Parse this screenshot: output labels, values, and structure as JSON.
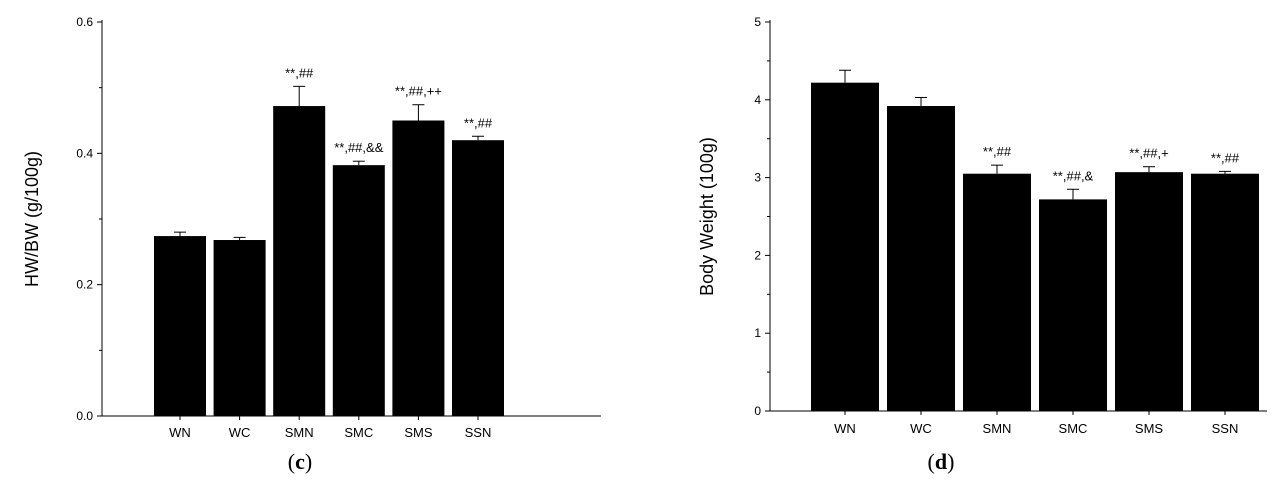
{
  "chart_data": [
    {
      "type": "bar",
      "panel_label": "(c)",
      "ylabel": "HW/BW (g/100g)",
      "xlabel": "",
      "ylim": [
        0,
        0.6
      ],
      "yticks": [
        "0.0",
        "0.2",
        "0.4",
        "0.6"
      ],
      "categories": [
        "WN",
        "WC",
        "SMN",
        "SMC",
        "SMS",
        "SSN"
      ],
      "values": [
        0.274,
        0.268,
        0.472,
        0.382,
        0.45,
        0.42
      ],
      "errors": [
        0.006,
        0.004,
        0.03,
        0.006,
        0.024,
        0.006
      ],
      "annotations": [
        "",
        "",
        "**,##",
        "**,##,&&",
        "**,##,++",
        "**,##"
      ],
      "bar_color": "#000000"
    },
    {
      "type": "bar",
      "panel_label": "(d)",
      "ylabel": "Body Weight (100g)",
      "xlabel": "",
      "ylim": [
        0,
        5
      ],
      "yticks": [
        "0",
        "1",
        "2",
        "3",
        "4",
        "5"
      ],
      "categories": [
        "WN",
        "WC",
        "SMN",
        "SMC",
        "SMS",
        "SSN"
      ],
      "values": [
        4.22,
        3.92,
        3.05,
        2.72,
        3.07,
        3.05
      ],
      "errors": [
        0.16,
        0.11,
        0.11,
        0.13,
        0.07,
        0.03
      ],
      "annotations": [
        "",
        "",
        "**,##",
        "**,##,&",
        "**,##,+",
        "**,##"
      ],
      "bar_color": "#000000"
    }
  ]
}
